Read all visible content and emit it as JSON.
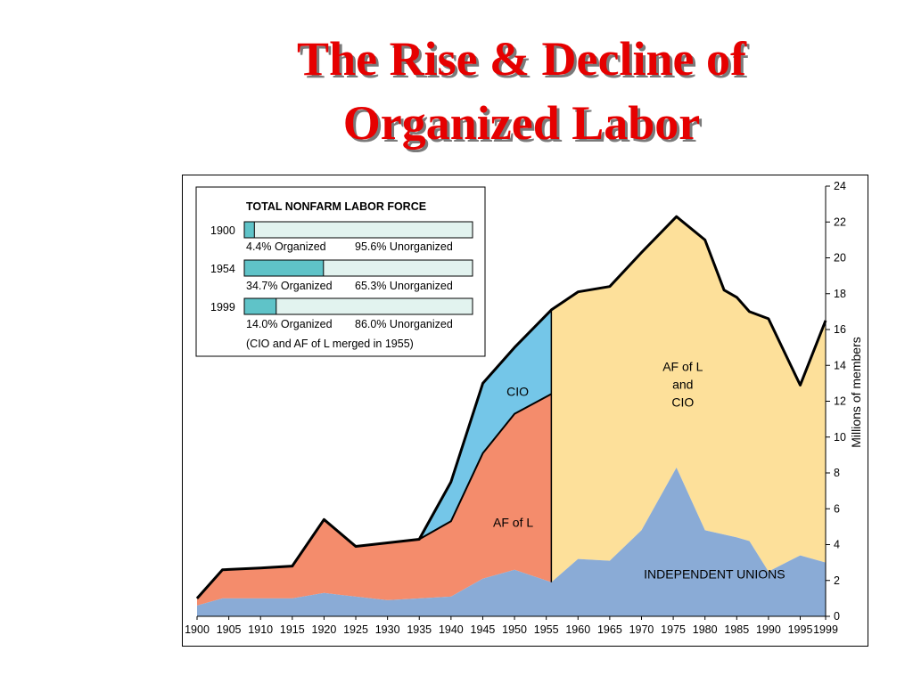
{
  "slide": {
    "title_line1": "The Rise & Decline of",
    "title_line2": "Organized Labor"
  },
  "colors": {
    "independent": "#8aabd6",
    "afl": "#f48c6c",
    "cio": "#74c6e8",
    "merged": "#fde09a",
    "inset_bar_fill": "#5fc3c8",
    "inset_bar_bg": "#e2f3ef",
    "title": "#e60000"
  },
  "inset": {
    "title": "TOTAL NONFARM LABOR FORCE",
    "rows": [
      {
        "year": "1900",
        "organized_pct": 4.4,
        "organized_label": "4.4% Organized",
        "unorganized_label": "95.6% Unorganized"
      },
      {
        "year": "1954",
        "organized_pct": 34.7,
        "organized_label": "34.7% Organized",
        "unorganized_label": "65.3% Unorganized"
      },
      {
        "year": "1999",
        "organized_pct": 14.0,
        "organized_label": "14.0% Organized",
        "unorganized_label": "86.0% Unorganized"
      }
    ],
    "note": "(CIO and AF of L merged in 1955)"
  },
  "chart_data": {
    "type": "area",
    "ylabel": "Millions of members",
    "ylim": [
      0,
      24
    ],
    "xlim": [
      1900,
      1999
    ],
    "y_ticks": [
      "0",
      "2",
      "4",
      "6",
      "8",
      "10",
      "12",
      "14",
      "16",
      "18",
      "20",
      "22",
      "24"
    ],
    "x_ticks": [
      "1900",
      "1905",
      "1910",
      "1915",
      "1920",
      "1925",
      "1930",
      "1935",
      "1940",
      "1945",
      "1950",
      "1955",
      "1960",
      "1965",
      "1970",
      "1975",
      "1980",
      "1985",
      "1990",
      "1995",
      "1999"
    ],
    "merger_year": 1955.8,
    "series": [
      {
        "name": "INDEPENDENT UNIONS",
        "label": "INDEPENDENT UNIONS",
        "x": [
          1900,
          1904,
          1910,
          1915,
          1920,
          1925,
          1930,
          1935,
          1940,
          1945,
          1950,
          1955.8,
          1960,
          1965,
          1970,
          1975.5,
          1980,
          1985,
          1987,
          1990,
          1995,
          1999
        ],
        "top": [
          0.6,
          1.0,
          1.0,
          1.0,
          1.3,
          1.1,
          0.9,
          1.0,
          1.1,
          2.1,
          2.6,
          1.9,
          3.2,
          3.1,
          4.8,
          8.3,
          4.8,
          4.4,
          4.2,
          2.5,
          3.4,
          3.0
        ]
      },
      {
        "name": "AF of L",
        "label": "AF of L",
        "x": [
          1900,
          1904,
          1910,
          1915,
          1920,
          1925,
          1930,
          1935,
          1940,
          1945,
          1950,
          1955.8
        ],
        "top": [
          1.0,
          2.6,
          2.7,
          2.8,
          5.4,
          3.9,
          4.1,
          4.3,
          5.3,
          9.1,
          11.3,
          12.4
        ]
      },
      {
        "name": "CIO",
        "label": "CIO",
        "x": [
          1935,
          1940,
          1945,
          1950,
          1955.8
        ],
        "top": [
          4.3,
          7.5,
          13.0,
          15.0,
          17.1
        ]
      },
      {
        "name": "AF of L and CIO",
        "label_lines": [
          "AF of L",
          "and",
          "CIO"
        ],
        "x": [
          1955.8,
          1960,
          1965,
          1970,
          1975.5,
          1980,
          1983,
          1985,
          1987,
          1990,
          1995,
          1999
        ],
        "top": [
          17.1,
          18.1,
          18.4,
          20.3,
          22.3,
          21.0,
          18.2,
          17.8,
          17.0,
          16.6,
          12.9,
          16.5
        ]
      }
    ]
  }
}
